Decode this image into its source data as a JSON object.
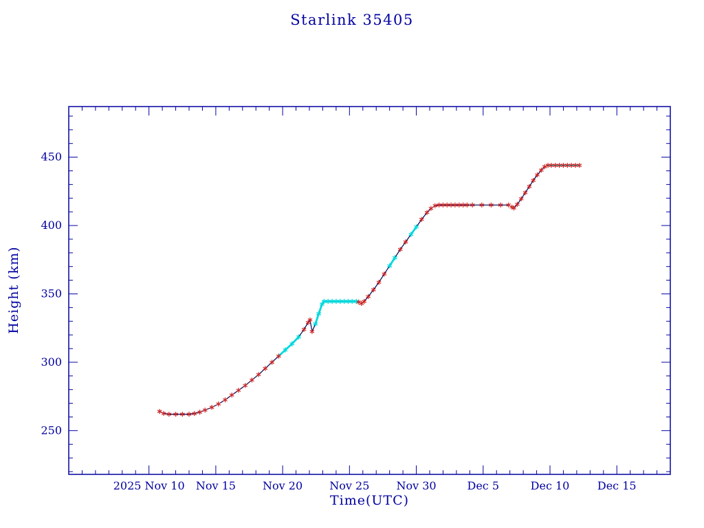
{
  "chart_data": {
    "type": "line",
    "title": "Starlink 35405",
    "xlabel": "Time(UTC)",
    "ylabel": "Height (km)",
    "x_unit": "day of 2025 (Nov 1 = 1, Dec d = 30 + d)",
    "xlim": [
      4,
      49
    ],
    "ylim": [
      218,
      487
    ],
    "grid": false,
    "legend": null,
    "x_ticks": [
      {
        "day": 10,
        "label": "2025 Nov 10"
      },
      {
        "day": 15,
        "label": "Nov 15"
      },
      {
        "day": 20,
        "label": "Nov 20"
      },
      {
        "day": 25,
        "label": "Nov 25"
      },
      {
        "day": 30,
        "label": "Nov 30"
      },
      {
        "day": 35,
        "label": "Dec 5"
      },
      {
        "day": 40,
        "label": "Dec 10"
      },
      {
        "day": 45,
        "label": "Dec 15"
      }
    ],
    "x_minor_step": 1,
    "y_ticks": [
      250,
      300,
      350,
      400,
      450
    ],
    "y_minor_step": 10,
    "series": [
      {
        "name": "orbit-height-km",
        "points": [
          [
            10.8,
            264
          ],
          [
            11.1,
            262.6
          ],
          [
            11.5,
            262
          ],
          [
            12.0,
            262
          ],
          [
            12.5,
            262
          ],
          [
            13.0,
            262
          ],
          [
            13.4,
            262.5
          ],
          [
            13.8,
            263.5
          ],
          [
            14.2,
            265
          ],
          [
            14.7,
            267
          ],
          [
            15.2,
            269.5
          ],
          [
            15.7,
            272.5
          ],
          [
            16.2,
            276
          ],
          [
            16.7,
            279.5
          ],
          [
            17.2,
            283
          ],
          [
            17.7,
            287
          ],
          [
            18.2,
            291
          ],
          [
            18.7,
            295.5
          ],
          [
            19.2,
            300
          ],
          [
            19.7,
            304.5
          ],
          [
            20.2,
            309
          ],
          [
            20.7,
            313.5
          ],
          [
            21.2,
            318.5
          ],
          [
            21.6,
            324
          ],
          [
            21.9,
            329
          ],
          [
            22.05,
            331
          ],
          [
            22.2,
            322.5
          ],
          [
            22.45,
            328
          ],
          [
            22.7,
            335.5
          ],
          [
            22.95,
            342.5
          ],
          [
            23.1,
            344.5
          ],
          [
            23.4,
            344.5
          ],
          [
            23.7,
            344.5
          ],
          [
            24.0,
            344.5
          ],
          [
            24.3,
            344.5
          ],
          [
            24.6,
            344.5
          ],
          [
            24.9,
            344.5
          ],
          [
            25.2,
            344.5
          ],
          [
            25.5,
            344.5
          ],
          [
            25.7,
            344
          ],
          [
            25.9,
            343
          ],
          [
            26.1,
            344.5
          ],
          [
            26.4,
            348
          ],
          [
            26.8,
            353
          ],
          [
            27.2,
            358.5
          ],
          [
            27.6,
            364.5
          ],
          [
            28.0,
            370.5
          ],
          [
            28.4,
            376.5
          ],
          [
            28.8,
            382.5
          ],
          [
            29.2,
            388
          ],
          [
            29.6,
            393.5
          ],
          [
            30.0,
            399
          ],
          [
            30.4,
            404.5
          ],
          [
            30.8,
            409.5
          ],
          [
            31.1,
            412.5
          ],
          [
            31.4,
            414.5
          ],
          [
            31.7,
            415
          ],
          [
            32.0,
            415
          ],
          [
            32.3,
            415
          ],
          [
            32.6,
            415
          ],
          [
            32.9,
            415
          ],
          [
            33.2,
            415
          ],
          [
            33.5,
            415
          ],
          [
            33.8,
            415
          ],
          [
            34.2,
            415
          ],
          [
            34.9,
            415
          ],
          [
            35.6,
            415
          ],
          [
            36.3,
            415
          ],
          [
            36.9,
            415
          ],
          [
            37.15,
            413.5
          ],
          [
            37.3,
            412.8
          ],
          [
            37.55,
            415.5
          ],
          [
            37.85,
            419.5
          ],
          [
            38.15,
            424
          ],
          [
            38.45,
            428.5
          ],
          [
            38.75,
            433
          ],
          [
            39.05,
            437
          ],
          [
            39.35,
            440.5
          ],
          [
            39.6,
            443
          ],
          [
            39.85,
            444
          ],
          [
            40.1,
            444
          ],
          [
            40.4,
            444
          ],
          [
            40.7,
            444
          ],
          [
            41.0,
            444
          ],
          [
            41.3,
            444
          ],
          [
            41.6,
            444
          ],
          [
            41.9,
            444
          ],
          [
            42.2,
            444
          ]
        ]
      }
    ],
    "highlight_line_segments_days": [
      [
        19.7,
        21.25
      ],
      [
        22.25,
        25.5
      ],
      [
        27.9,
        28.7
      ],
      [
        29.4,
        30.0
      ],
      [
        39.8,
        42.3
      ]
    ],
    "highlight_marker_segments_days": [
      [
        19.9,
        21.3
      ],
      [
        22.3,
        25.5
      ],
      [
        27.9,
        28.7
      ],
      [
        29.4,
        30.0
      ]
    ]
  },
  "colors": {
    "axis": "#0000a0",
    "axis_text": "#0000a0",
    "line": "#000050",
    "marker": "#cc2222",
    "highlight": "#00d8dc",
    "background": "#ffffff"
  }
}
